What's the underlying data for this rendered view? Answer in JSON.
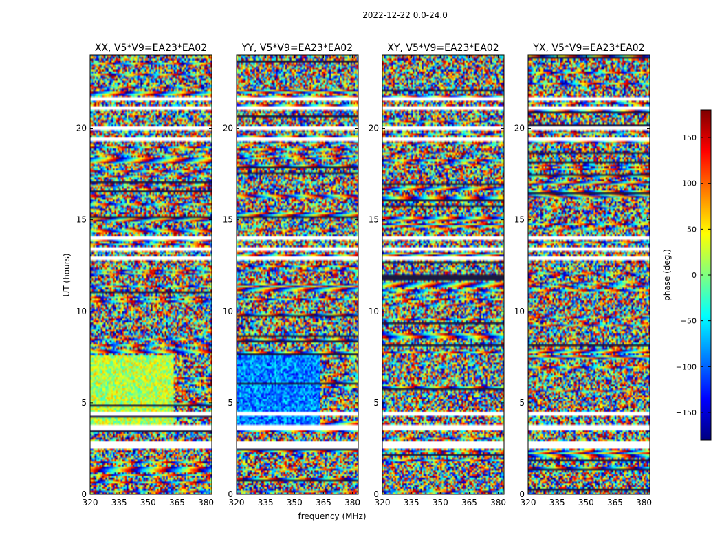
{
  "suptitle": "2022-12-22 0.0-24.0",
  "chart_data": {
    "type": "heatmap",
    "title": "2022-12-22 0.0-24.0",
    "xlabel": "frequency (MHz)",
    "ylabel": "UT (hours)",
    "xlim": [
      320,
      383
    ],
    "ylim": [
      0,
      24
    ],
    "xticks": [
      320,
      335,
      350,
      365,
      380
    ],
    "yticks": [
      0,
      5,
      10,
      15,
      20
    ],
    "colormap": "jet",
    "colorbar": {
      "label": "phase (deg.)",
      "range": [
        -180,
        180
      ],
      "ticks": [
        150,
        100,
        50,
        0,
        -50,
        -100,
        -150
      ]
    },
    "panels": [
      {
        "title": "XX, V5*V9=EA23*EA02"
      },
      {
        "title": "YY, V5*V9=EA23*EA02"
      },
      {
        "title": "XY, V5*V9=EA23*EA02"
      },
      {
        "title": "YX, V5*V9=EA23*EA02"
      }
    ],
    "blank_time_rows_hours": [
      3.6,
      3.7,
      12.9,
      13.4,
      21.1,
      21.6,
      2.6,
      2.8,
      20.0,
      19.4,
      14.0,
      4.4
    ],
    "coherent_regions": [
      {
        "panel": 0,
        "t_start": 3.8,
        "t_end": 7.6,
        "f_end": 363,
        "phase_deg": 20,
        "note": "XX smooth phase block"
      },
      {
        "panel": 1,
        "t_start": 3.8,
        "t_end": 7.6,
        "f_end": 363,
        "phase_deg": -90,
        "note": "YY smooth phase block"
      }
    ]
  }
}
